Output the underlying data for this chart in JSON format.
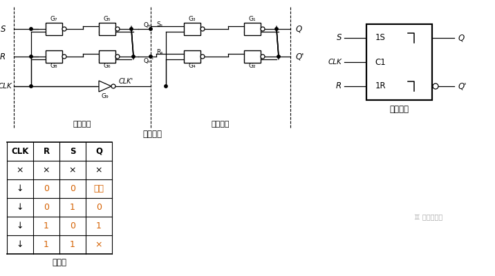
{
  "bg_color": "#ffffff",
  "orange_color": "#d46000",
  "table_headers": [
    "CLK",
    "R",
    "S",
    "Q"
  ],
  "table_rows": [
    [
      "×",
      "×",
      "×",
      "×"
    ],
    [
      "↓",
      "0",
      "0",
      "保持"
    ],
    [
      "↓",
      "0",
      "1",
      "0"
    ],
    [
      "↓",
      "1",
      "0",
      "1"
    ],
    [
      "↓",
      "1",
      "1",
      "×"
    ]
  ],
  "label_circuit": "电路结构",
  "label_symbol": "图形符号",
  "label_table": "真値表",
  "label_master": "主触发器",
  "label_slave": "从触发器",
  "watermark": "滑小笾笔记"
}
